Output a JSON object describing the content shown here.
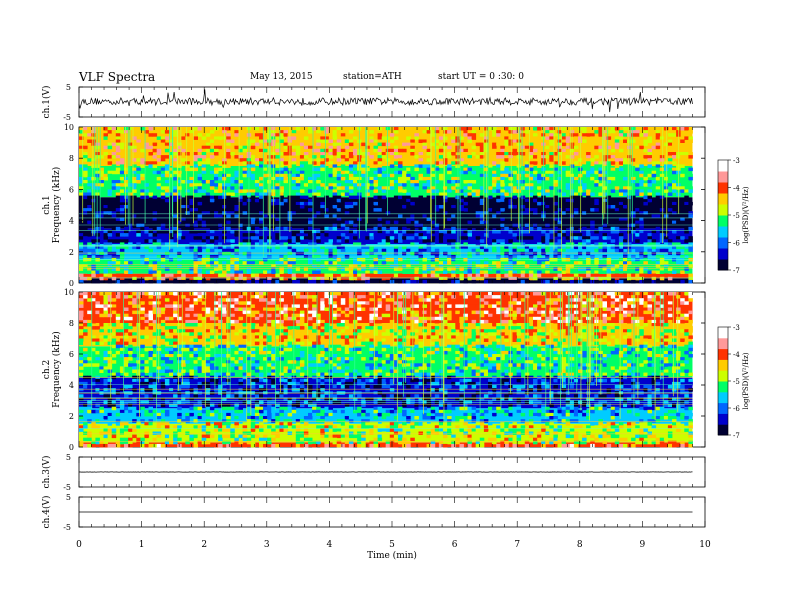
{
  "header": {
    "title": "VLF  Spectra",
    "date": "May 13, 2015",
    "station": "station=ATH",
    "start_ut": "start  UT  =   0  :30: 0"
  },
  "chart_data": [
    {
      "type": "line",
      "name": "ch1-waveform",
      "ylabel": "ch.1(V)",
      "ylim": [
        -5,
        5
      ],
      "yticks": [
        "5",
        "-5"
      ],
      "xlim": [
        0,
        10
      ],
      "data_extent_min": 9.8,
      "baseline": 0.2,
      "noise_amplitude": 1.2
    },
    {
      "type": "heatmap",
      "name": "ch1-spectrogram",
      "ylabel_top": "ch.1",
      "ylabel": "Frequency  (kHz)",
      "ylim": [
        0,
        10
      ],
      "yticks": [
        "10",
        "8",
        "6",
        "4",
        "2",
        "0"
      ],
      "xlim": [
        0,
        10
      ],
      "data_extent_min": 9.8,
      "colorbar": {
        "label": "log(PSD)(V²/Hz)",
        "range": [
          -7,
          -3
        ],
        "ticks": [
          "-3",
          "-4",
          "-5",
          "-6",
          "-7"
        ]
      },
      "bands": [
        {
          "f_low": 0,
          "f_high": 0.3,
          "logpsd": -6.7
        },
        {
          "f_low": 0.3,
          "f_high": 0.6,
          "logpsd": -4.2
        },
        {
          "f_low": 0.6,
          "f_high": 1.5,
          "logpsd": -5.2
        },
        {
          "f_low": 1.5,
          "f_high": 2.5,
          "logpsd": -5.8
        },
        {
          "f_low": 2.5,
          "f_high": 3.5,
          "logpsd": -6.5
        },
        {
          "f_low": 3.5,
          "f_high": 5.5,
          "logpsd": -6.8
        },
        {
          "f_low": 5.5,
          "f_high": 7.5,
          "logpsd": -5.2
        },
        {
          "f_low": 7.5,
          "f_high": 10,
          "logpsd": -4.3
        }
      ]
    },
    {
      "type": "heatmap",
      "name": "ch2-spectrogram",
      "ylabel_top": "ch.2",
      "ylabel": "Frequency  (kHz)",
      "ylim": [
        0,
        10
      ],
      "yticks": [
        "10",
        "8",
        "6",
        "4",
        "2",
        "0"
      ],
      "xlim": [
        0,
        10
      ],
      "data_extent_min": 9.8,
      "colorbar": {
        "label": "log(PSD)(V²/Hz)",
        "range": [
          -7,
          -3
        ],
        "ticks": [
          "-3",
          "-4",
          "-5",
          "-6",
          "-7"
        ]
      },
      "bands": [
        {
          "f_low": 0,
          "f_high": 0.3,
          "logpsd": -4.0
        },
        {
          "f_low": 0.3,
          "f_high": 1.5,
          "logpsd": -4.8
        },
        {
          "f_low": 1.5,
          "f_high": 2.5,
          "logpsd": -5.6
        },
        {
          "f_low": 2.5,
          "f_high": 4.5,
          "logpsd": -6.2
        },
        {
          "f_low": 4.5,
          "f_high": 6.5,
          "logpsd": -5.3
        },
        {
          "f_low": 6.5,
          "f_high": 8.0,
          "logpsd": -4.6
        },
        {
          "f_low": 8.0,
          "f_high": 10,
          "logpsd": -3.9
        }
      ]
    },
    {
      "type": "line",
      "name": "ch3-waveform",
      "ylabel": "ch.3(V)",
      "ylim": [
        -5,
        5
      ],
      "yticks": [
        "5",
        "-5"
      ],
      "xlim": [
        0,
        10
      ],
      "data_extent_min": 9.8,
      "baseline": 0,
      "noise_amplitude": 0.05
    },
    {
      "type": "line",
      "name": "ch4-waveform",
      "ylabel": "ch.4(V)",
      "ylim": [
        -5,
        5
      ],
      "yticks": [
        "5",
        "-5"
      ],
      "xlim": [
        0,
        10
      ],
      "data_extent_min": 9.8,
      "baseline": 0,
      "noise_amplitude": 0
    }
  ],
  "xaxis": {
    "label": "Time  (min)",
    "ticks": [
      "0",
      "1",
      "2",
      "3",
      "4",
      "5",
      "6",
      "7",
      "8",
      "9",
      "10"
    ]
  },
  "colormap": [
    "#000033",
    "#0000cc",
    "#0066ff",
    "#00ccff",
    "#00ff66",
    "#ccff00",
    "#ffcc00",
    "#ff3300",
    "#ff9999",
    "#ffffff"
  ]
}
